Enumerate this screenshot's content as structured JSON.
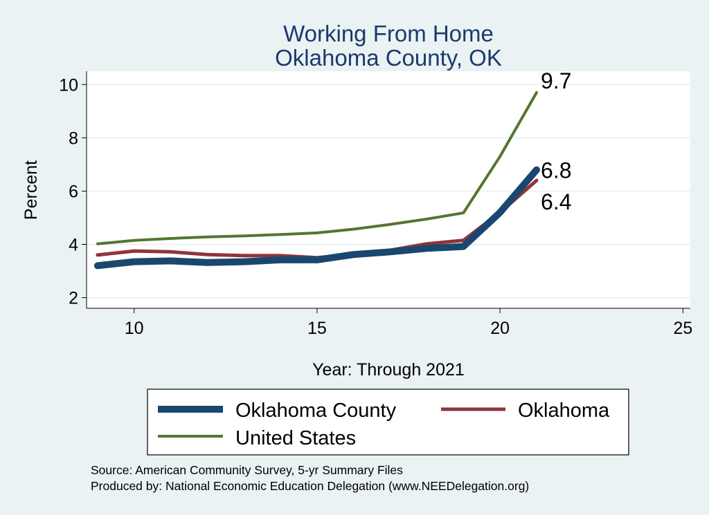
{
  "chart_data": {
    "type": "line",
    "title": [
      "Working From Home",
      "Oklahoma County, OK"
    ],
    "xlabel": "Year: Through 2021",
    "ylabel": "Percent",
    "xlim": [
      8.7,
      25.2
    ],
    "ylim": [
      1.6,
      10.5
    ],
    "xticks": [
      10,
      15,
      20,
      25
    ],
    "yticks": [
      2,
      4,
      6,
      8,
      10
    ],
    "grid": true,
    "legend_position": "bottom",
    "x": [
      9,
      10,
      11,
      12,
      13,
      14,
      15,
      16,
      17,
      18,
      19,
      20,
      21
    ],
    "series": [
      {
        "name": "Oklahoma County",
        "color": "#1a476f",
        "values": [
          3.2,
          3.35,
          3.38,
          3.32,
          3.35,
          3.42,
          3.42,
          3.62,
          3.72,
          3.85,
          3.92,
          5.2,
          6.8
        ],
        "end_label": "6.8"
      },
      {
        "name": "Oklahoma",
        "color": "#90353b",
        "values": [
          3.6,
          3.75,
          3.72,
          3.62,
          3.58,
          3.58,
          3.5,
          3.62,
          3.78,
          4.02,
          4.15,
          5.2,
          6.4
        ],
        "end_label": "6.4"
      },
      {
        "name": "United States",
        "color": "#55752f",
        "values": [
          4.02,
          4.15,
          4.22,
          4.28,
          4.32,
          4.37,
          4.43,
          4.57,
          4.75,
          4.95,
          5.18,
          7.3,
          9.7
        ],
        "end_label": "9.7"
      }
    ],
    "notes": [
      "Source: American Community Survey, 5-yr Summary Files",
      "Produced by: National Economic Education Delegation (www.NEEDelegation.org)"
    ]
  }
}
